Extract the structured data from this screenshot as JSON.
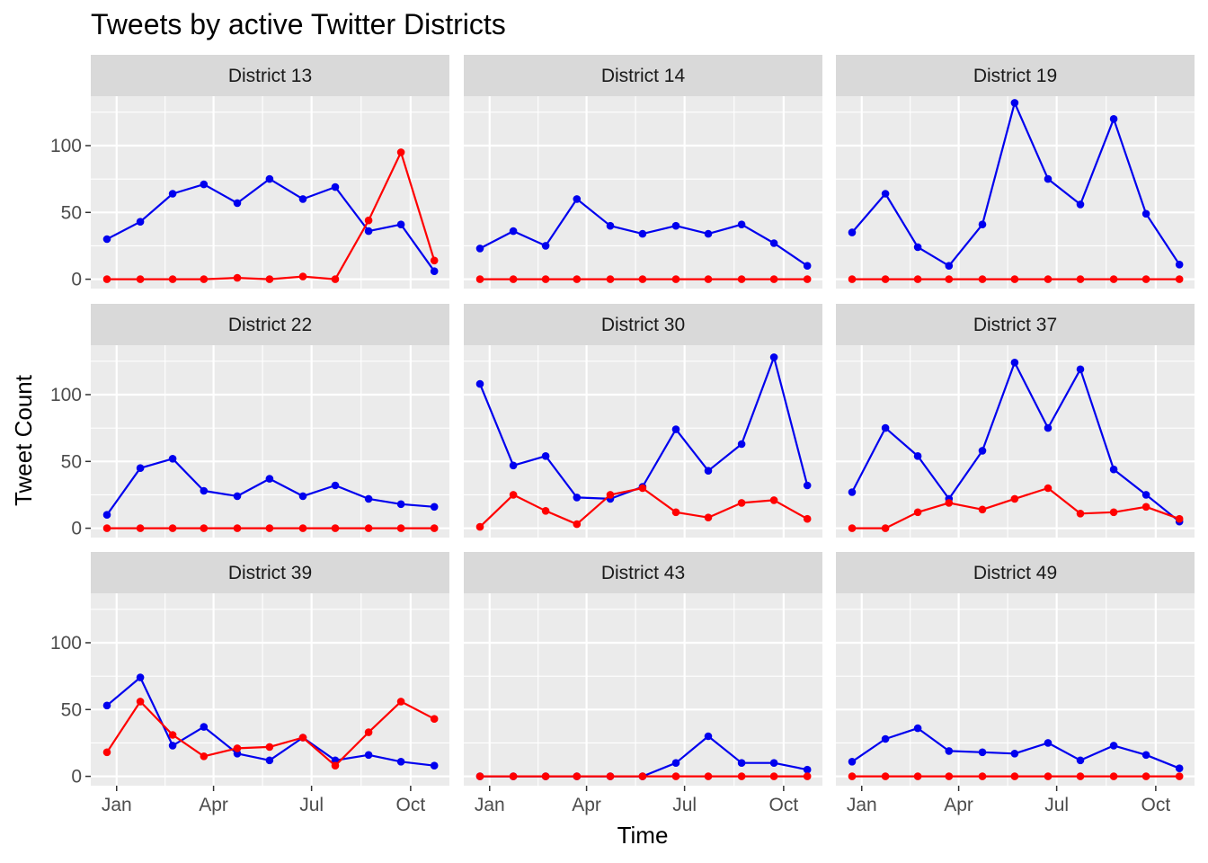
{
  "chart_data": {
    "type": "line",
    "title": "Tweets by active Twitter Districts",
    "xlabel": "Time",
    "ylabel": "Tweet Count",
    "x_tick_labels": [
      "Jan",
      "Apr",
      "Jul",
      "Oct"
    ],
    "x_tick_dates": [
      "2019-01-01",
      "2019-04-01",
      "2019-07-01",
      "2019-10-01"
    ],
    "y_ticks": [
      0,
      50,
      100
    ],
    "ylim": [
      -7,
      137
    ],
    "xlim": [
      "2018-12-08",
      "2019-11-06"
    ],
    "grid": true,
    "legend": "none",
    "x": [
      "2018-12-23",
      "2019-01-23",
      "2019-02-22",
      "2019-03-23",
      "2019-04-23",
      "2019-05-23",
      "2019-06-23",
      "2019-07-23",
      "2019-08-23",
      "2019-09-22",
      "2019-10-23"
    ],
    "series_colors": [
      "#0000ee",
      "#ff0000"
    ],
    "facets": [
      {
        "label": "District 13",
        "series": [
          {
            "values": [
              30,
              43,
              64,
              71,
              57,
              75,
              60,
              69,
              36,
              41,
              6
            ]
          },
          {
            "values": [
              0,
              0,
              0,
              0,
              1,
              0,
              2,
              0,
              44,
              95,
              14
            ]
          }
        ]
      },
      {
        "label": "District 14",
        "series": [
          {
            "values": [
              23,
              36,
              25,
              60,
              40,
              34,
              40,
              34,
              41,
              27,
              10
            ]
          },
          {
            "values": [
              0,
              0,
              0,
              0,
              0,
              0,
              0,
              0,
              0,
              0,
              0
            ]
          }
        ]
      },
      {
        "label": "District 19",
        "series": [
          {
            "values": [
              35,
              64,
              24,
              10,
              41,
              132,
              75,
              56,
              120,
              49,
              11
            ]
          },
          {
            "values": [
              0,
              0,
              0,
              0,
              0,
              0,
              0,
              0,
              0,
              0,
              0
            ]
          }
        ]
      },
      {
        "label": "District 22",
        "series": [
          {
            "values": [
              10,
              45,
              52,
              28,
              24,
              37,
              24,
              32,
              22,
              18,
              16
            ]
          },
          {
            "values": [
              0,
              0,
              0,
              0,
              0,
              0,
              0,
              0,
              0,
              0,
              0
            ]
          }
        ]
      },
      {
        "label": "District 30",
        "series": [
          {
            "values": [
              108,
              47,
              54,
              23,
              22,
              31,
              74,
              43,
              63,
              128,
              32
            ]
          },
          {
            "values": [
              1,
              25,
              13,
              3,
              25,
              30,
              12,
              8,
              19,
              21,
              7
            ]
          }
        ]
      },
      {
        "label": "District 37",
        "series": [
          {
            "values": [
              27,
              75,
              54,
              22,
              58,
              124,
              75,
              119,
              44,
              25,
              5
            ]
          },
          {
            "values": [
              0,
              0,
              12,
              19,
              14,
              22,
              30,
              11,
              12,
              16,
              7
            ]
          }
        ]
      },
      {
        "label": "District 39",
        "series": [
          {
            "values": [
              53,
              74,
              23,
              37,
              17,
              12,
              29,
              12,
              16,
              11,
              8
            ]
          },
          {
            "values": [
              18,
              56,
              31,
              15,
              21,
              22,
              29,
              8,
              33,
              56,
              43
            ]
          }
        ]
      },
      {
        "label": "District 43",
        "series": [
          {
            "values": [
              0,
              0,
              0,
              0,
              0,
              0,
              10,
              30,
              10,
              10,
              5
            ]
          },
          {
            "values": [
              0,
              0,
              0,
              0,
              0,
              0,
              0,
              0,
              0,
              0,
              0
            ]
          }
        ]
      },
      {
        "label": "District 49",
        "series": [
          {
            "values": [
              11,
              28,
              36,
              19,
              18,
              17,
              25,
              12,
              23,
              16,
              6
            ]
          },
          {
            "values": [
              0,
              0,
              0,
              0,
              0,
              0,
              0,
              0,
              0,
              0,
              0
            ]
          }
        ]
      }
    ]
  }
}
